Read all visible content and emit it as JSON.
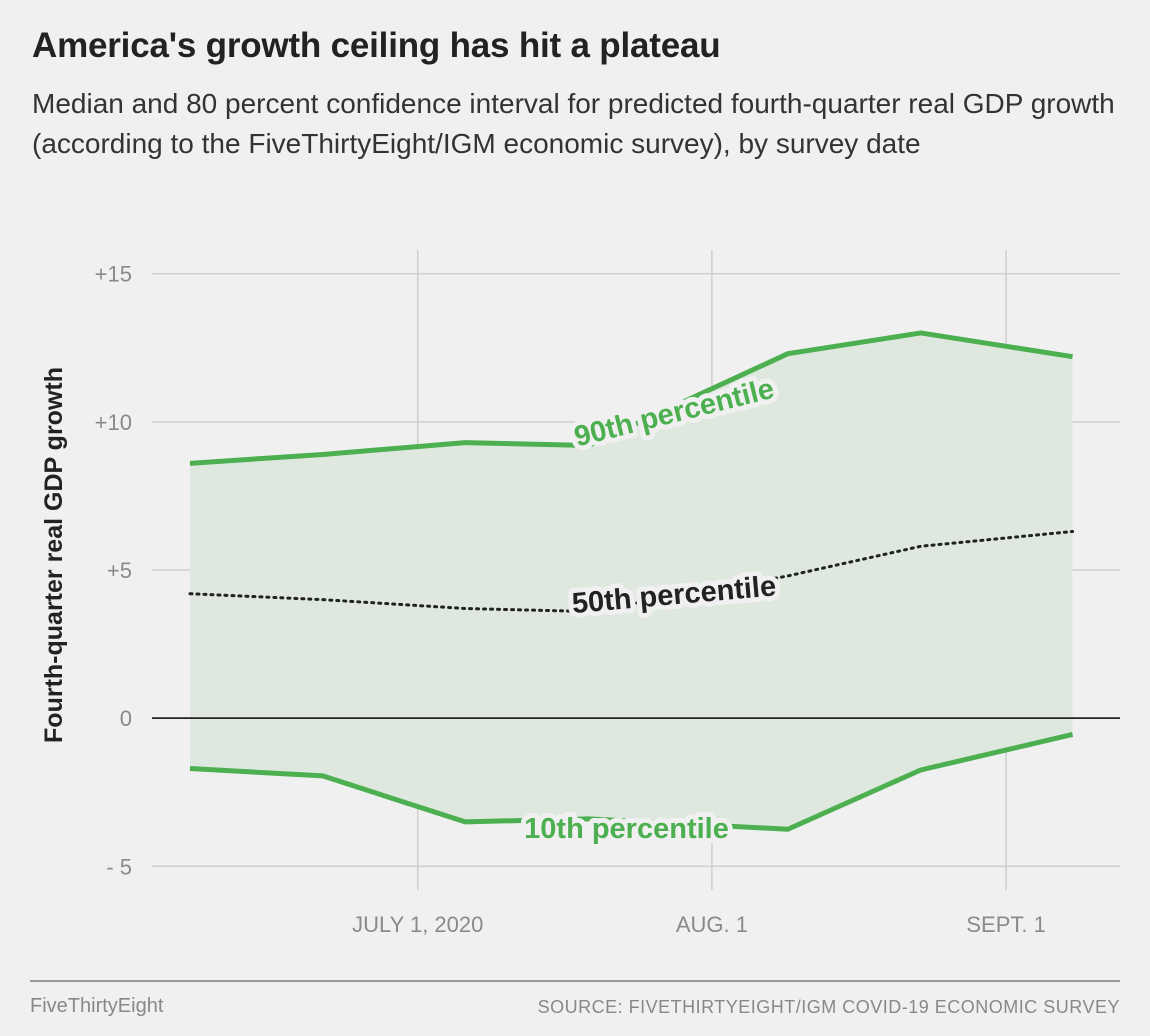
{
  "header": {
    "title": "America's growth ceiling has hit a plateau",
    "subtitle": "Median and 80 percent confidence interval for predicted fourth-quarter real GDP growth (according to the FiveThirtyEight/IGM economic survey), by survey date"
  },
  "chart_data": {
    "type": "area",
    "ylabel": "Fourth-quarter real GDP growth",
    "xlabel": "",
    "ylim": [
      -5.8,
      15.8
    ],
    "yticks": [
      -5,
      0,
      5,
      10,
      15
    ],
    "ytick_labels": [
      "- 5",
      "0",
      "+5",
      "+10",
      "+15"
    ],
    "xlim": [
      "2020-06-03",
      "2020-09-13"
    ],
    "xticks": [
      "2020-07-01",
      "2020-08-01",
      "2020-09-01"
    ],
    "xtick_labels": [
      "JULY 1, 2020",
      "AUG. 1",
      "SEPT. 1"
    ],
    "grid": true,
    "x": [
      "2020-06-07",
      "2020-06-21",
      "2020-07-06",
      "2020-07-19",
      "2020-08-09",
      "2020-08-23",
      "2020-09-08"
    ],
    "series": [
      {
        "name": "90th percentile",
        "label": "90th percentile",
        "values": [
          8.6,
          8.9,
          9.3,
          9.2,
          12.3,
          13.0,
          12.2
        ],
        "color": "#4caf50"
      },
      {
        "name": "50th percentile",
        "label": "50th percentile",
        "values": [
          4.2,
          4.0,
          3.7,
          3.6,
          4.8,
          5.8,
          6.3
        ],
        "color": "#222222"
      },
      {
        "name": "10th percentile",
        "label": "10th percentile",
        "values": [
          -1.7,
          -1.95,
          -3.5,
          -3.4,
          -3.75,
          -1.75,
          -0.55
        ],
        "color": "#4caf50"
      }
    ],
    "band_color": "#dfe8df",
    "zero_line_color": "#222222"
  },
  "footer": {
    "brand": "FiveThirtyEight",
    "source": "SOURCE: FIVETHIRTYEIGHT/IGM COVID-19 ECONOMIC SURVEY"
  }
}
